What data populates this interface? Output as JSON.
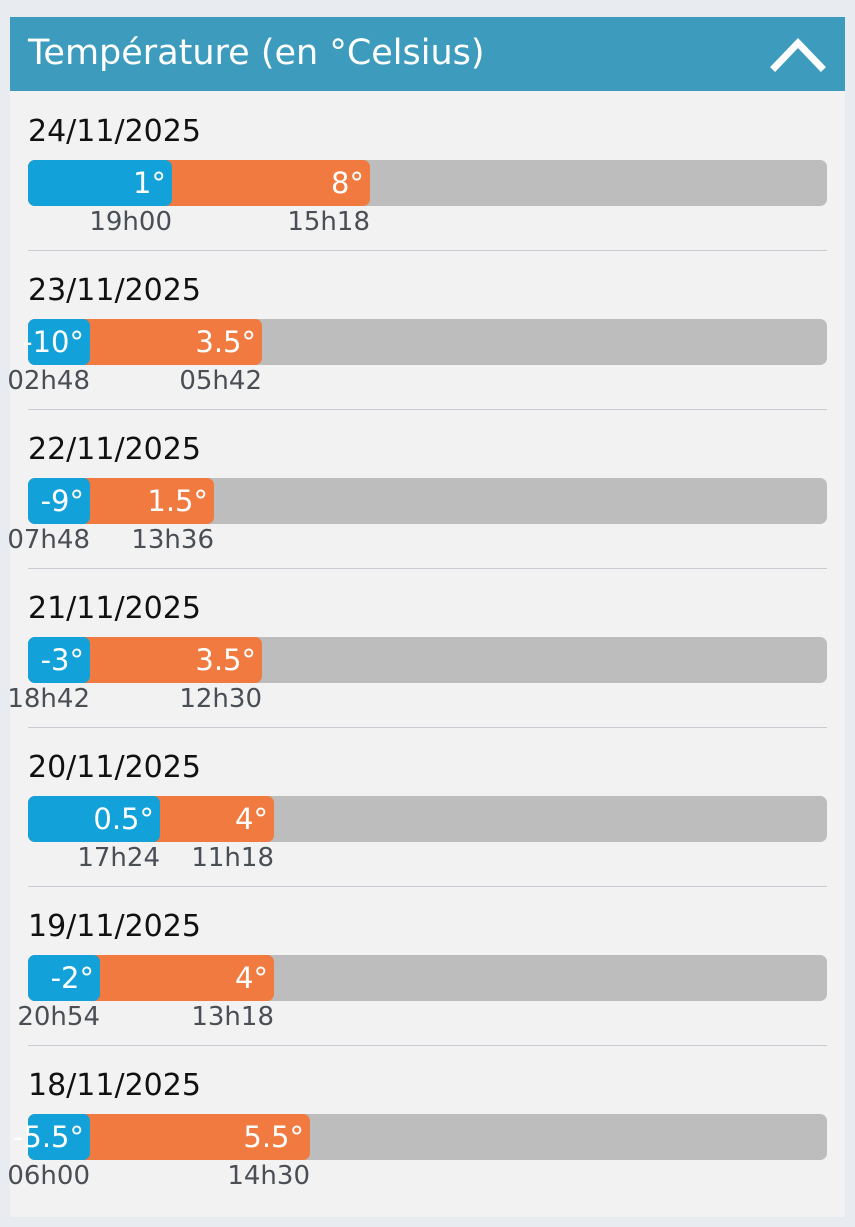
{
  "header": {
    "title": "Température (en °Celsius)",
    "icon": "chevron-up-icon"
  },
  "colors": {
    "header": "#3d9cbd",
    "min_bar": "#12a1d8",
    "max_bar": "#f07a3f",
    "track": "#bdbdbd"
  },
  "days": [
    {
      "date": "24/11/2025",
      "min_label": "1°",
      "max_label": "8°",
      "min_time": "19h00",
      "max_time": "15h18",
      "min_value": 1,
      "max_value": 8
    },
    {
      "date": "23/11/2025",
      "min_label": "-10°",
      "max_label": "3.5°",
      "min_time": "02h48",
      "max_time": "05h42",
      "min_value": -10,
      "max_value": 3.5
    },
    {
      "date": "22/11/2025",
      "min_label": "-9°",
      "max_label": "1.5°",
      "min_time": "07h48",
      "max_time": "13h36",
      "min_value": -9,
      "max_value": 1.5
    },
    {
      "date": "21/11/2025",
      "min_label": "-3°",
      "max_label": "3.5°",
      "min_time": "18h42",
      "max_time": "12h30",
      "min_value": -3,
      "max_value": 3.5
    },
    {
      "date": "20/11/2025",
      "min_label": "0.5°",
      "max_label": "4°",
      "min_time": "17h24",
      "max_time": "11h18",
      "min_value": 0.5,
      "max_value": 4
    },
    {
      "date": "19/11/2025",
      "min_label": "-2°",
      "max_label": "4°",
      "min_time": "20h54",
      "max_time": "13h18",
      "min_value": -2,
      "max_value": 4
    },
    {
      "date": "18/11/2025",
      "min_label": "-5.5°",
      "max_label": "5.5°",
      "min_time": "06h00",
      "max_time": "14h30",
      "min_value": -5.5,
      "max_value": 5.5
    }
  ]
}
